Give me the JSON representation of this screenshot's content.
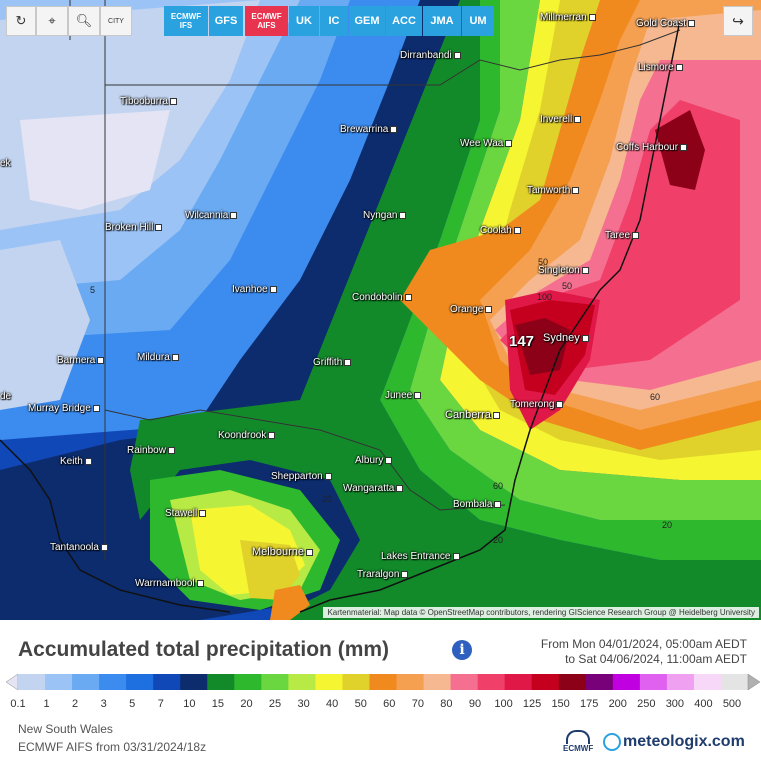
{
  "toolbar": {
    "refresh_icon": "refresh-icon",
    "locate_icon": "map-pin-icon",
    "zoom_icon": "zoom-icon",
    "city_label": "CITY",
    "share_icon": "share-icon"
  },
  "models": [
    {
      "label": "ECMWF IFS",
      "active": false
    },
    {
      "label": "GFS",
      "active": false
    },
    {
      "label": "ECMWF AIFS",
      "active": true
    },
    {
      "label": "UK",
      "active": false
    },
    {
      "label": "IC",
      "active": false
    },
    {
      "label": "GEM",
      "active": false
    },
    {
      "label": "ACC",
      "active": false
    },
    {
      "label": "JMA",
      "active": false
    },
    {
      "label": "UM",
      "active": false
    }
  ],
  "cities": [
    {
      "name": "Millmerran"
    },
    {
      "name": "Gold Coast"
    },
    {
      "name": "Dirranbandi"
    },
    {
      "name": "Lismore"
    },
    {
      "name": "Tibooburra"
    },
    {
      "name": "Inverell"
    },
    {
      "name": "Brewarrina"
    },
    {
      "name": "Wee Waa"
    },
    {
      "name": "Coffs Harbour"
    },
    {
      "name": "Tamworth"
    },
    {
      "name": "Wilcannia"
    },
    {
      "name": "Nyngan"
    },
    {
      "name": "Coolah"
    },
    {
      "name": "Broken Hill"
    },
    {
      "name": "Taree"
    },
    {
      "name": "Singleton"
    },
    {
      "name": "Ivanhoe"
    },
    {
      "name": "Condobolin"
    },
    {
      "name": "Orange"
    },
    {
      "name": "Sydney"
    },
    {
      "name": "Mildura"
    },
    {
      "name": "Griffith"
    },
    {
      "name": "Barmera"
    },
    {
      "name": "Junee"
    },
    {
      "name": "Murray Bridge"
    },
    {
      "name": "Tomerong"
    },
    {
      "name": "Canberra"
    },
    {
      "name": "Koondrook"
    },
    {
      "name": "Rainbow"
    },
    {
      "name": "Albury"
    },
    {
      "name": "Keith"
    },
    {
      "name": "Shepparton"
    },
    {
      "name": "Wangaratta"
    },
    {
      "name": "Bombala"
    },
    {
      "name": "Stawell"
    },
    {
      "name": "Tantanoola"
    },
    {
      "name": "Melbourne"
    },
    {
      "name": "Lakes Entrance"
    },
    {
      "name": "Warrnambool"
    },
    {
      "name": "Traralgon"
    },
    {
      "name": "ek"
    },
    {
      "name": "de"
    }
  ],
  "contour_labels": [
    "5",
    "50",
    "50",
    "100",
    "60",
    "60",
    "20",
    "20",
    "20"
  ],
  "max_value": "147",
  "attribution": "Kartenmaterial: Map data © OpenStreetMap contributors, rendering GIScience Research Group @ Heidelberg University",
  "legend": {
    "title": "Accumulated total precipitation (mm)",
    "info_icon": "info-icon",
    "range_from": "From Mon 04/01/2024, 05:00am AEDT",
    "range_to": "to Sat 04/06/2024, 11:00am AEDT",
    "ticks": [
      "0.1",
      "1",
      "2",
      "3",
      "5",
      "7",
      "10",
      "15",
      "20",
      "25",
      "30",
      "40",
      "50",
      "60",
      "70",
      "80",
      "90",
      "100",
      "125",
      "150",
      "175",
      "200",
      "250",
      "300",
      "400",
      "500"
    ],
    "colors": [
      "#e4e4f4",
      "#c3d4f0",
      "#9cc3f5",
      "#6aaaf2",
      "#3c8cf0",
      "#1e6fe0",
      "#1148b8",
      "#0c2c6e",
      "#138a2a",
      "#2eb82e",
      "#6ad640",
      "#b8ea45",
      "#f5f532",
      "#e0d22a",
      "#f08a1e",
      "#f5a050",
      "#f5b890",
      "#f57090",
      "#f0406a",
      "#e01848",
      "#c4001e",
      "#8c0018",
      "#780078",
      "#c000e0",
      "#e060f0",
      "#f0a0f0",
      "#f8d8f8",
      "#e4e4e4",
      "#b0b0b0"
    ]
  },
  "footer": {
    "region": "New South Wales",
    "run": "ECMWF AIFS from 03/31/2024/18z",
    "ecmwf_logo": "ECMWF",
    "brand": "meteologix.com"
  }
}
